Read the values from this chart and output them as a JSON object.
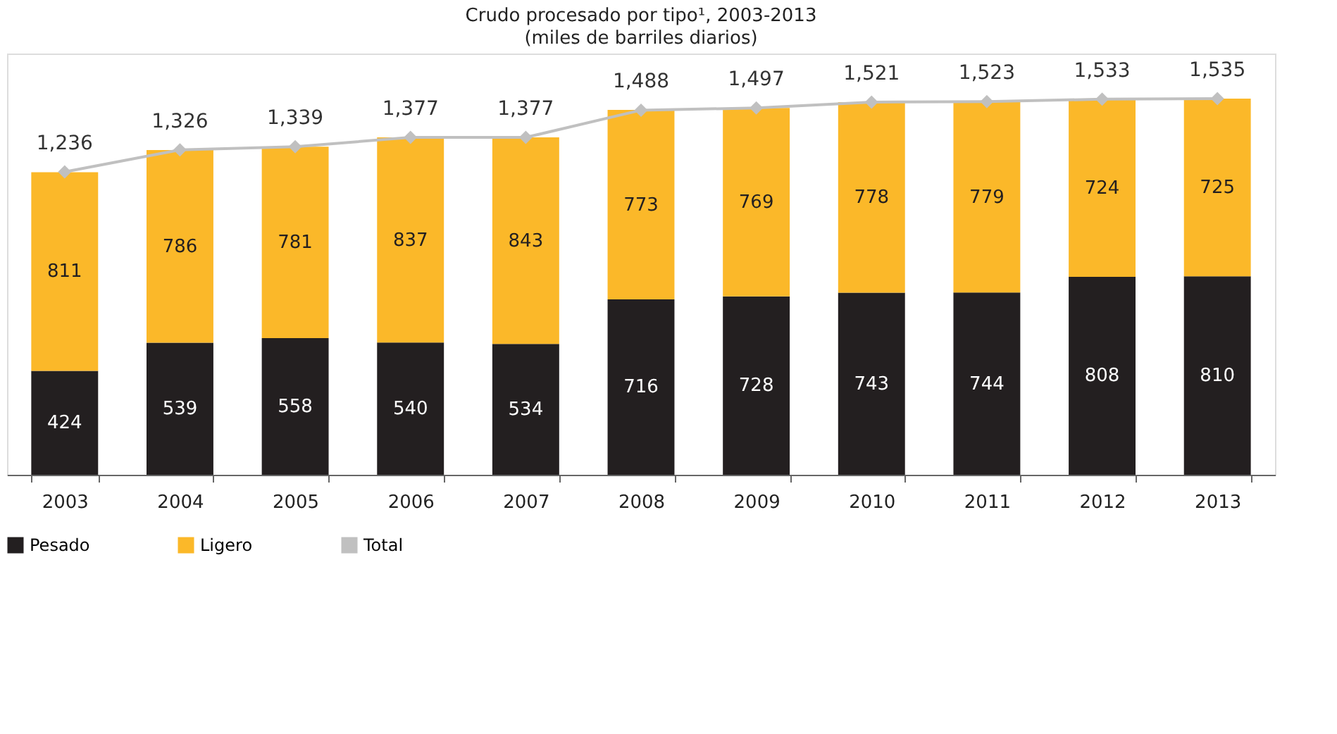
{
  "chart_data": {
    "type": "bar",
    "title": "Crudo procesado por tipo¹, 2003-2013",
    "subtitle": "(miles de barriles diarios)",
    "categories": [
      "2003",
      "2004",
      "2005",
      "2006",
      "2007",
      "2008",
      "2009",
      "2010",
      "2011",
      "2012",
      "2013"
    ],
    "stacked": true,
    "data_labels": true,
    "grid": false,
    "legend": "bottom",
    "tick_labels": "x",
    "series": [
      {
        "name": "Pesado",
        "color": "#231f20",
        "values": [
          424,
          539,
          558,
          540,
          534,
          716,
          728,
          743,
          744,
          808,
          810
        ]
      },
      {
        "name": "Ligero",
        "color": "#fbb829",
        "values": [
          811,
          786,
          781,
          837,
          843,
          773,
          769,
          778,
          779,
          724,
          725
        ]
      },
      {
        "name": "Total",
        "type": "line",
        "marker": "diamond",
        "color": "#c0c0c0",
        "values": [
          1236,
          1326,
          1339,
          1377,
          1377,
          1488,
          1497,
          1521,
          1523,
          1533,
          1535
        ],
        "value_labels": [
          "1,236",
          "1,326",
          "1,339",
          "1,377",
          "1,377",
          "1,488",
          "1,497",
          "1,521",
          "1,523",
          "1,533",
          "1,535"
        ]
      }
    ]
  }
}
